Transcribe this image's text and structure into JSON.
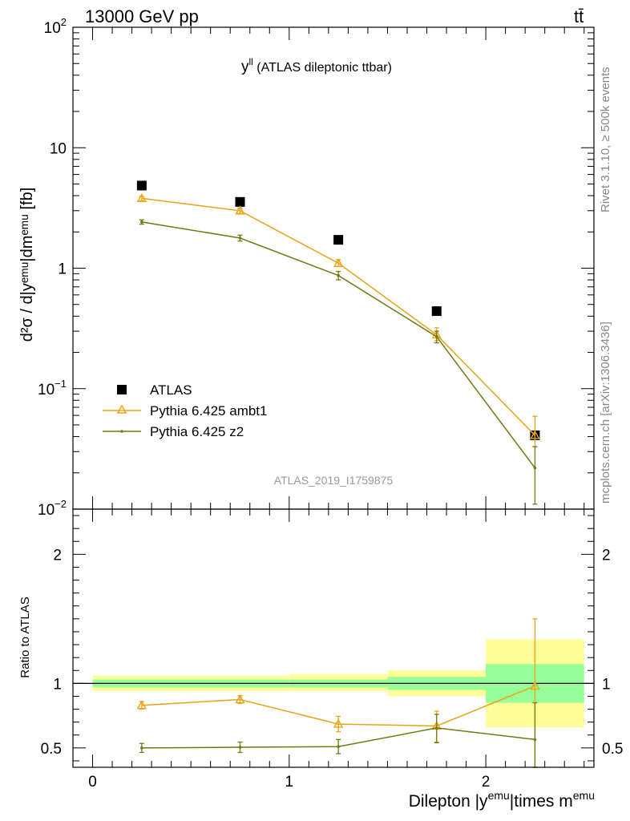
{
  "header": {
    "left": "13000 GeV pp",
    "right": "tt̄"
  },
  "side_labels": {
    "rivet": "Rivet 3.1.10, ≥ 500k events",
    "mcplots": "mcplots.cern.ch [arXiv:1306.3436]"
  },
  "analysis_id": "ATLAS_2019_I1759875",
  "chart_data": [
    {
      "type": "scatter",
      "panel": "main",
      "title_main": "y",
      "title_sup": "ll",
      "title_rest": " (ATLAS dileptonic ttbar)",
      "ylabel": "d²σ / d|yᵉᵐᵘ|dmᵉᵐᵘ [fb]",
      "yscale": "log",
      "ylim": [
        0.01,
        100
      ],
      "xlim": [
        -0.1,
        2.55
      ],
      "y_ticks": [
        {
          "value": 0.01,
          "base": "10",
          "exp": "−2"
        },
        {
          "value": 0.1,
          "base": "10",
          "exp": "−1"
        },
        {
          "value": 1,
          "base": "1",
          "exp": ""
        },
        {
          "value": 10,
          "base": "10",
          "exp": ""
        },
        {
          "value": 100,
          "base": "10",
          "exp": "2"
        }
      ],
      "legend_position": "bottom-left",
      "series": [
        {
          "name": "ATLAS",
          "color": "#000000",
          "marker": "square",
          "x": [
            0.25,
            0.75,
            1.25,
            1.75,
            2.25
          ],
          "y": [
            4.85,
            3.55,
            1.72,
            0.44,
            0.041
          ]
        },
        {
          "name": "Pythia 6.425 ambt1",
          "color": "#e8a317",
          "marker": "triangle",
          "x": [
            0.25,
            0.75,
            1.25,
            1.75,
            2.25
          ],
          "y": [
            3.8,
            3.0,
            1.1,
            0.28,
            0.041
          ],
          "yerr_lo": [
            3.65,
            2.85,
            1.03,
            0.25,
            0.033
          ],
          "yerr_hi": [
            3.95,
            3.15,
            1.18,
            0.32,
            0.059
          ]
        },
        {
          "name": "Pythia 6.425 z2",
          "color": "#717a12",
          "marker": "dot",
          "x": [
            0.25,
            0.75,
            1.25,
            1.75,
            2.25
          ],
          "y": [
            2.42,
            1.78,
            0.87,
            0.27,
            0.022
          ],
          "yerr_lo": [
            2.32,
            1.68,
            0.8,
            0.24,
            0.011
          ],
          "yerr_hi": [
            2.52,
            1.88,
            0.94,
            0.3,
            0.033
          ]
        }
      ]
    },
    {
      "type": "scatter",
      "panel": "ratio",
      "ylabel": "Ratio to ATLAS",
      "xlabel_main": "Dilepton |y",
      "xlabel_sup1": "emu",
      "xlabel_mid": "|times m",
      "xlabel_sup2": "emu",
      "ylim": [
        0.35,
        2.35
      ],
      "xlim": [
        -0.1,
        2.55
      ],
      "x_ticks": [
        "0",
        "1",
        "2"
      ],
      "y_ticks": [
        "0.5",
        "1",
        "2"
      ],
      "bands": [
        {
          "x0": 0.0,
          "x1": 1.0,
          "inner": [
            0.97,
            1.03
          ],
          "outer": [
            0.94,
            1.06
          ]
        },
        {
          "x0": 1.0,
          "x1": 1.5,
          "inner": [
            0.97,
            1.03
          ],
          "outer": [
            0.94,
            1.07
          ]
        },
        {
          "x0": 1.5,
          "x1": 2.0,
          "inner": [
            0.95,
            1.05
          ],
          "outer": [
            0.9,
            1.1
          ]
        },
        {
          "x0": 2.0,
          "x1": 2.5,
          "inner": [
            0.85,
            1.15
          ],
          "outer": [
            0.66,
            1.34
          ]
        }
      ],
      "band_colors": {
        "inner": "#99ff99",
        "outer": "#ffff99"
      },
      "series": [
        {
          "name": "Pythia 6.425 ambt1",
          "color": "#e8a317",
          "marker": "triangle",
          "x": [
            0.25,
            0.75,
            1.25,
            1.75,
            2.25
          ],
          "y": [
            0.83,
            0.875,
            0.685,
            0.67,
            0.98
          ],
          "yerr_lo": [
            0.8,
            0.845,
            0.625,
            0.545,
            0.35
          ],
          "yerr_hi": [
            0.86,
            0.905,
            0.745,
            0.785,
            1.5
          ]
        },
        {
          "name": "Pythia 6.425 z2",
          "color": "#717a12",
          "marker": "dot",
          "x": [
            0.25,
            0.75,
            1.25,
            1.75,
            2.25
          ],
          "y": [
            0.5,
            0.505,
            0.51,
            0.655,
            0.565
          ],
          "yerr_lo": [
            0.465,
            0.465,
            0.455,
            0.54,
            0.28
          ],
          "yerr_hi": [
            0.535,
            0.545,
            0.565,
            0.76,
            0.85
          ]
        }
      ]
    }
  ]
}
